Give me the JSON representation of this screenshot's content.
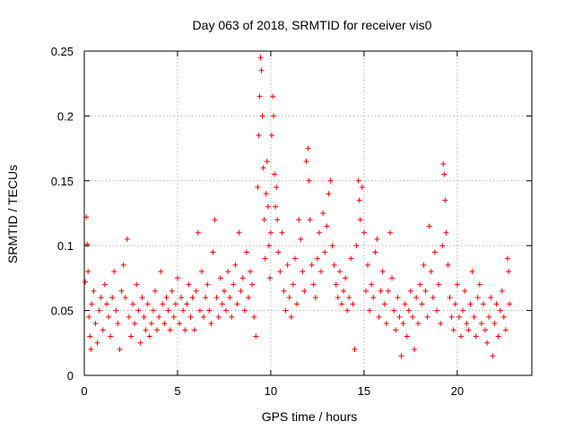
{
  "chart_data": {
    "type": "scatter",
    "title": "Day 063 of 2018, SRMTID for receiver vis0",
    "xlabel": "GPS time / hours",
    "ylabel": "SRMTID / TECUs",
    "xlim": [
      0,
      24
    ],
    "ylim": [
      0,
      0.25
    ],
    "x_ticks": [
      0,
      5,
      10,
      15,
      20
    ],
    "x_tick_labels": [
      "0",
      "5",
      "10",
      "15",
      "20"
    ],
    "y_ticks": [
      0,
      0.05,
      0.1,
      0.15,
      0.2,
      0.25
    ],
    "y_tick_labels": [
      "0",
      "0.05",
      "0.1",
      "0.15",
      "0.2",
      "0.25"
    ],
    "grid": true,
    "marker": "plus",
    "series_color": "#ff0000",
    "series": [
      {
        "name": "SRMTID",
        "points": [
          [
            0.05,
            0.072
          ],
          [
            0.1,
            0.122
          ],
          [
            0.15,
            0.101
          ],
          [
            0.2,
            0.08
          ],
          [
            0.25,
            0.045
          ],
          [
            0.3,
            0.03
          ],
          [
            0.35,
            0.02
          ],
          [
            0.4,
            0.055
          ],
          [
            0.5,
            0.065
          ],
          [
            0.6,
            0.04
          ],
          [
            0.7,
            0.025
          ],
          [
            0.8,
            0.05
          ],
          [
            0.9,
            0.06
          ],
          [
            1.0,
            0.035
          ],
          [
            1.1,
            0.07
          ],
          [
            1.2,
            0.055
          ],
          [
            1.3,
            0.045
          ],
          [
            1.4,
            0.03
          ],
          [
            1.5,
            0.06
          ],
          [
            1.6,
            0.08
          ],
          [
            1.7,
            0.05
          ],
          [
            1.8,
            0.04
          ],
          [
            1.9,
            0.02
          ],
          [
            2.0,
            0.065
          ],
          [
            2.1,
            0.085
          ],
          [
            2.2,
            0.06
          ],
          [
            2.3,
            0.105
          ],
          [
            2.4,
            0.045
          ],
          [
            2.5,
            0.03
          ],
          [
            2.6,
            0.055
          ],
          [
            2.7,
            0.04
          ],
          [
            2.8,
            0.07
          ],
          [
            2.9,
            0.05
          ],
          [
            3.0,
            0.025
          ],
          [
            3.1,
            0.06
          ],
          [
            3.2,
            0.045
          ],
          [
            3.3,
            0.035
          ],
          [
            3.4,
            0.055
          ],
          [
            3.5,
            0.03
          ],
          [
            3.6,
            0.04
          ],
          [
            3.7,
            0.05
          ],
          [
            3.8,
            0.065
          ],
          [
            3.9,
            0.035
          ],
          [
            4.0,
            0.045
          ],
          [
            4.1,
            0.08
          ],
          [
            4.2,
            0.055
          ],
          [
            4.3,
            0.04
          ],
          [
            4.4,
            0.06
          ],
          [
            4.5,
            0.05
          ],
          [
            4.6,
            0.035
          ],
          [
            4.7,
            0.065
          ],
          [
            4.8,
            0.045
          ],
          [
            4.9,
            0.055
          ],
          [
            5.0,
            0.075
          ],
          [
            5.1,
            0.04
          ],
          [
            5.2,
            0.06
          ],
          [
            5.3,
            0.05
          ],
          [
            5.4,
            0.035
          ],
          [
            5.5,
            0.055
          ],
          [
            5.6,
            0.07
          ],
          [
            5.7,
            0.045
          ],
          [
            5.8,
            0.06
          ],
          [
            5.9,
            0.035
          ],
          [
            6.0,
            0.065
          ],
          [
            6.1,
            0.11
          ],
          [
            6.2,
            0.05
          ],
          [
            6.3,
            0.08
          ],
          [
            6.4,
            0.045
          ],
          [
            6.5,
            0.06
          ],
          [
            6.6,
            0.07
          ],
          [
            6.7,
            0.05
          ],
          [
            6.8,
            0.04
          ],
          [
            6.9,
            0.095
          ],
          [
            7.0,
            0.12
          ],
          [
            7.1,
            0.06
          ],
          [
            7.2,
            0.045
          ],
          [
            7.3,
            0.075
          ],
          [
            7.4,
            0.055
          ],
          [
            7.5,
            0.065
          ],
          [
            7.6,
            0.05
          ],
          [
            7.7,
            0.08
          ],
          [
            7.8,
            0.06
          ],
          [
            7.9,
            0.045
          ],
          [
            8.0,
            0.07
          ],
          [
            8.1,
            0.085
          ],
          [
            8.2,
            0.055
          ],
          [
            8.3,
            0.11
          ],
          [
            8.4,
            0.065
          ],
          [
            8.5,
            0.075
          ],
          [
            8.6,
            0.05
          ],
          [
            8.7,
            0.095
          ],
          [
            8.8,
            0.06
          ],
          [
            8.9,
            0.08
          ],
          [
            9.0,
            0.07
          ],
          [
            9.1,
            0.045
          ],
          [
            9.2,
            0.03
          ],
          [
            9.3,
            0.145
          ],
          [
            9.35,
            0.185
          ],
          [
            9.4,
            0.215
          ],
          [
            9.45,
            0.245
          ],
          [
            9.5,
            0.235
          ],
          [
            9.55,
            0.2
          ],
          [
            9.6,
            0.16
          ],
          [
            9.65,
            0.12
          ],
          [
            9.7,
            0.09
          ],
          [
            9.75,
            0.14
          ],
          [
            9.8,
            0.165
          ],
          [
            9.85,
            0.13
          ],
          [
            9.9,
            0.1
          ],
          [
            9.95,
            0.075
          ],
          [
            10.0,
            0.11
          ],
          [
            10.05,
            0.185
          ],
          [
            10.1,
            0.215
          ],
          [
            10.15,
            0.2
          ],
          [
            10.2,
            0.155
          ],
          [
            10.25,
            0.13
          ],
          [
            10.3,
            0.145
          ],
          [
            10.35,
            0.12
          ],
          [
            10.4,
            0.095
          ],
          [
            10.5,
            0.08
          ],
          [
            10.6,
            0.11
          ],
          [
            10.7,
            0.065
          ],
          [
            10.8,
            0.05
          ],
          [
            10.9,
            0.085
          ],
          [
            11.0,
            0.06
          ],
          [
            11.1,
            0.045
          ],
          [
            11.2,
            0.07
          ],
          [
            11.3,
            0.09
          ],
          [
            11.4,
            0.055
          ],
          [
            11.5,
            0.12
          ],
          [
            11.6,
            0.105
          ],
          [
            11.7,
            0.08
          ],
          [
            11.8,
            0.065
          ],
          [
            11.9,
            0.165
          ],
          [
            12.0,
            0.175
          ],
          [
            12.05,
            0.15
          ],
          [
            12.1,
            0.12
          ],
          [
            12.2,
            0.085
          ],
          [
            12.3,
            0.07
          ],
          [
            12.4,
            0.06
          ],
          [
            12.5,
            0.09
          ],
          [
            12.6,
            0.11
          ],
          [
            12.7,
            0.08
          ],
          [
            12.8,
            0.125
          ],
          [
            12.9,
            0.095
          ],
          [
            13.0,
            0.115
          ],
          [
            13.1,
            0.14
          ],
          [
            13.2,
            0.15
          ],
          [
            13.3,
            0.1
          ],
          [
            13.4,
            0.085
          ],
          [
            13.5,
            0.07
          ],
          [
            13.6,
            0.06
          ],
          [
            13.7,
            0.08
          ],
          [
            13.8,
            0.055
          ],
          [
            13.9,
            0.065
          ],
          [
            14.0,
            0.075
          ],
          [
            14.1,
            0.05
          ],
          [
            14.2,
            0.06
          ],
          [
            14.3,
            0.09
          ],
          [
            14.4,
            0.055
          ],
          [
            14.5,
            0.02
          ],
          [
            14.6,
            0.1
          ],
          [
            14.7,
            0.15
          ],
          [
            14.75,
            0.135
          ],
          [
            14.8,
            0.12
          ],
          [
            14.9,
            0.145
          ],
          [
            15.0,
            0.11
          ],
          [
            15.1,
            0.065
          ],
          [
            15.2,
            0.085
          ],
          [
            15.3,
            0.05
          ],
          [
            15.4,
            0.07
          ],
          [
            15.5,
            0.06
          ],
          [
            15.6,
            0.095
          ],
          [
            15.7,
            0.105
          ],
          [
            15.8,
            0.045
          ],
          [
            15.9,
            0.065
          ],
          [
            16.0,
            0.08
          ],
          [
            16.1,
            0.055
          ],
          [
            16.2,
            0.04
          ],
          [
            16.3,
            0.065
          ],
          [
            16.4,
            0.11
          ],
          [
            16.5,
            0.075
          ],
          [
            16.6,
            0.05
          ],
          [
            16.7,
            0.035
          ],
          [
            16.8,
            0.06
          ],
          [
            16.9,
            0.045
          ],
          [
            17.0,
            0.015
          ],
          [
            17.1,
            0.04
          ],
          [
            17.2,
            0.055
          ],
          [
            17.3,
            0.03
          ],
          [
            17.4,
            0.05
          ],
          [
            17.5,
            0.065
          ],
          [
            17.6,
            0.045
          ],
          [
            17.7,
            0.02
          ],
          [
            17.8,
            0.06
          ],
          [
            17.9,
            0.04
          ],
          [
            18.0,
            0.07
          ],
          [
            18.1,
            0.055
          ],
          [
            18.2,
            0.085
          ],
          [
            18.3,
            0.065
          ],
          [
            18.4,
            0.045
          ],
          [
            18.5,
            0.115
          ],
          [
            18.6,
            0.08
          ],
          [
            18.7,
            0.06
          ],
          [
            18.8,
            0.095
          ],
          [
            18.9,
            0.05
          ],
          [
            19.0,
            0.07
          ],
          [
            19.1,
            0.04
          ],
          [
            19.2,
            0.1
          ],
          [
            19.25,
            0.163
          ],
          [
            19.3,
            0.155
          ],
          [
            19.35,
            0.135
          ],
          [
            19.4,
            0.11
          ],
          [
            19.5,
            0.085
          ],
          [
            19.6,
            0.06
          ],
          [
            19.7,
            0.045
          ],
          [
            19.8,
            0.035
          ],
          [
            19.9,
            0.055
          ],
          [
            20.0,
            0.07
          ],
          [
            20.1,
            0.045
          ],
          [
            20.2,
            0.03
          ],
          [
            20.3,
            0.05
          ],
          [
            20.4,
            0.065
          ],
          [
            20.5,
            0.04
          ],
          [
            20.6,
            0.035
          ],
          [
            20.7,
            0.055
          ],
          [
            20.8,
            0.08
          ],
          [
            20.9,
            0.045
          ],
          [
            21.0,
            0.03
          ],
          [
            21.1,
            0.06
          ],
          [
            21.2,
            0.07
          ],
          [
            21.3,
            0.04
          ],
          [
            21.4,
            0.055
          ],
          [
            21.5,
            0.035
          ],
          [
            21.6,
            0.025
          ],
          [
            21.7,
            0.045
          ],
          [
            21.8,
            0.06
          ],
          [
            21.9,
            0.015
          ],
          [
            22.0,
            0.04
          ],
          [
            22.1,
            0.055
          ],
          [
            22.2,
            0.03
          ],
          [
            22.3,
            0.05
          ],
          [
            22.4,
            0.065
          ],
          [
            22.5,
            0.045
          ],
          [
            22.6,
            0.035
          ],
          [
            22.7,
            0.09
          ],
          [
            22.75,
            0.08
          ],
          [
            22.8,
            0.055
          ]
        ]
      }
    ]
  }
}
